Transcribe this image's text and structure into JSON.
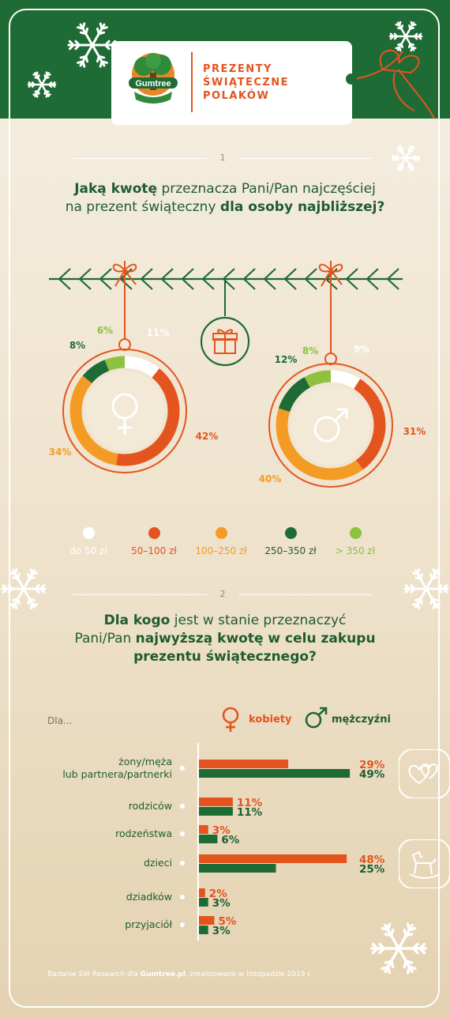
{
  "header": {
    "logo_text": "Gumtree",
    "title_lines": [
      "PREZENTY",
      "ŚWIĄTECZNE",
      "POLAKÓW"
    ]
  },
  "section1": {
    "number": "1",
    "question_parts": [
      {
        "text": "Jaką kwotę",
        "bold": true
      },
      {
        "text": " przeznacza Pani/Pan najczęściej",
        "bold": false
      },
      {
        "text": "na prezent świąteczny ",
        "bold": false,
        "newline": true
      },
      {
        "text": "dla osoby najbliższej?",
        "bold": true
      }
    ]
  },
  "section2": {
    "number": "2",
    "question_parts": [
      {
        "text": "Dla kogo",
        "bold": true
      },
      {
        "text": " jest w stanie przeznaczyć",
        "bold": false
      },
      {
        "text": "Pani/Pan ",
        "bold": false,
        "newline": true
      },
      {
        "text": "najwyższą kwotę w celu zakupu",
        "bold": true
      },
      {
        "text": "prezentu świątecznego?",
        "bold": true,
        "newline": true
      }
    ],
    "prefix": "Dla..."
  },
  "colors": {
    "white": "#ffffff",
    "red": "#e4541f",
    "orange": "#f39b23",
    "dark_green": "#1f6b35",
    "light_green": "#8dc13f",
    "text_green": "#1f5c31"
  },
  "chart_data": [
    {
      "type": "pie",
      "variant": "donut",
      "series_label": "female-symbol",
      "categories": [
        "do 50 zł",
        "50–100 zł",
        "100–250 zł",
        "250–350 zł",
        "> 350 zł"
      ],
      "values": [
        11,
        42,
        34,
        8,
        6
      ],
      "labels": [
        "11%",
        "42%",
        "34%",
        "8%",
        "6%"
      ]
    },
    {
      "type": "pie",
      "variant": "donut",
      "series_label": "male-symbol",
      "categories": [
        "do 50 zł",
        "50–100 zł",
        "100–250 zł",
        "250–350 zł",
        "> 350 zł"
      ],
      "values": [
        9,
        31,
        40,
        12,
        8
      ],
      "labels": [
        "9%",
        "31%",
        "40%",
        "12%",
        "8%"
      ]
    },
    {
      "type": "bar",
      "orientation": "horizontal",
      "categories": [
        "żony/męża\nlub partnera/partnerki",
        "rodziców",
        "rodzeństwa",
        "dzieci",
        "dziadków",
        "przyjaciół"
      ],
      "series": [
        {
          "name": "kobiety",
          "values": [
            29,
            11,
            3,
            48,
            2,
            5
          ],
          "labels": [
            "29%",
            "11%",
            "3%",
            "48%",
            "2%",
            "5%"
          ]
        },
        {
          "name": "mężczyźni",
          "values": [
            49,
            11,
            6,
            25,
            3,
            3
          ],
          "labels": [
            "49%",
            "11%",
            "6%",
            "25%",
            "3%",
            "3%"
          ]
        }
      ]
    }
  ],
  "legend": [
    {
      "label": "do 50 zł",
      "color": "#ffffff"
    },
    {
      "label": "50–100 zł",
      "color": "#e4541f"
    },
    {
      "label": "100–250 zł",
      "color": "#f39b23"
    },
    {
      "label": "250–350 zł",
      "color": "#1f6b35"
    },
    {
      "label": "> 350 zł",
      "color": "#8dc13f"
    }
  ],
  "footer": {
    "parts": [
      {
        "text": "Badanie SW Research dla ",
        "bold": false
      },
      {
        "text": "Gumtree.pl",
        "bold": true
      },
      {
        "text": ", zrealizowane w listopadzie 2019 r.",
        "bold": false
      }
    ]
  }
}
